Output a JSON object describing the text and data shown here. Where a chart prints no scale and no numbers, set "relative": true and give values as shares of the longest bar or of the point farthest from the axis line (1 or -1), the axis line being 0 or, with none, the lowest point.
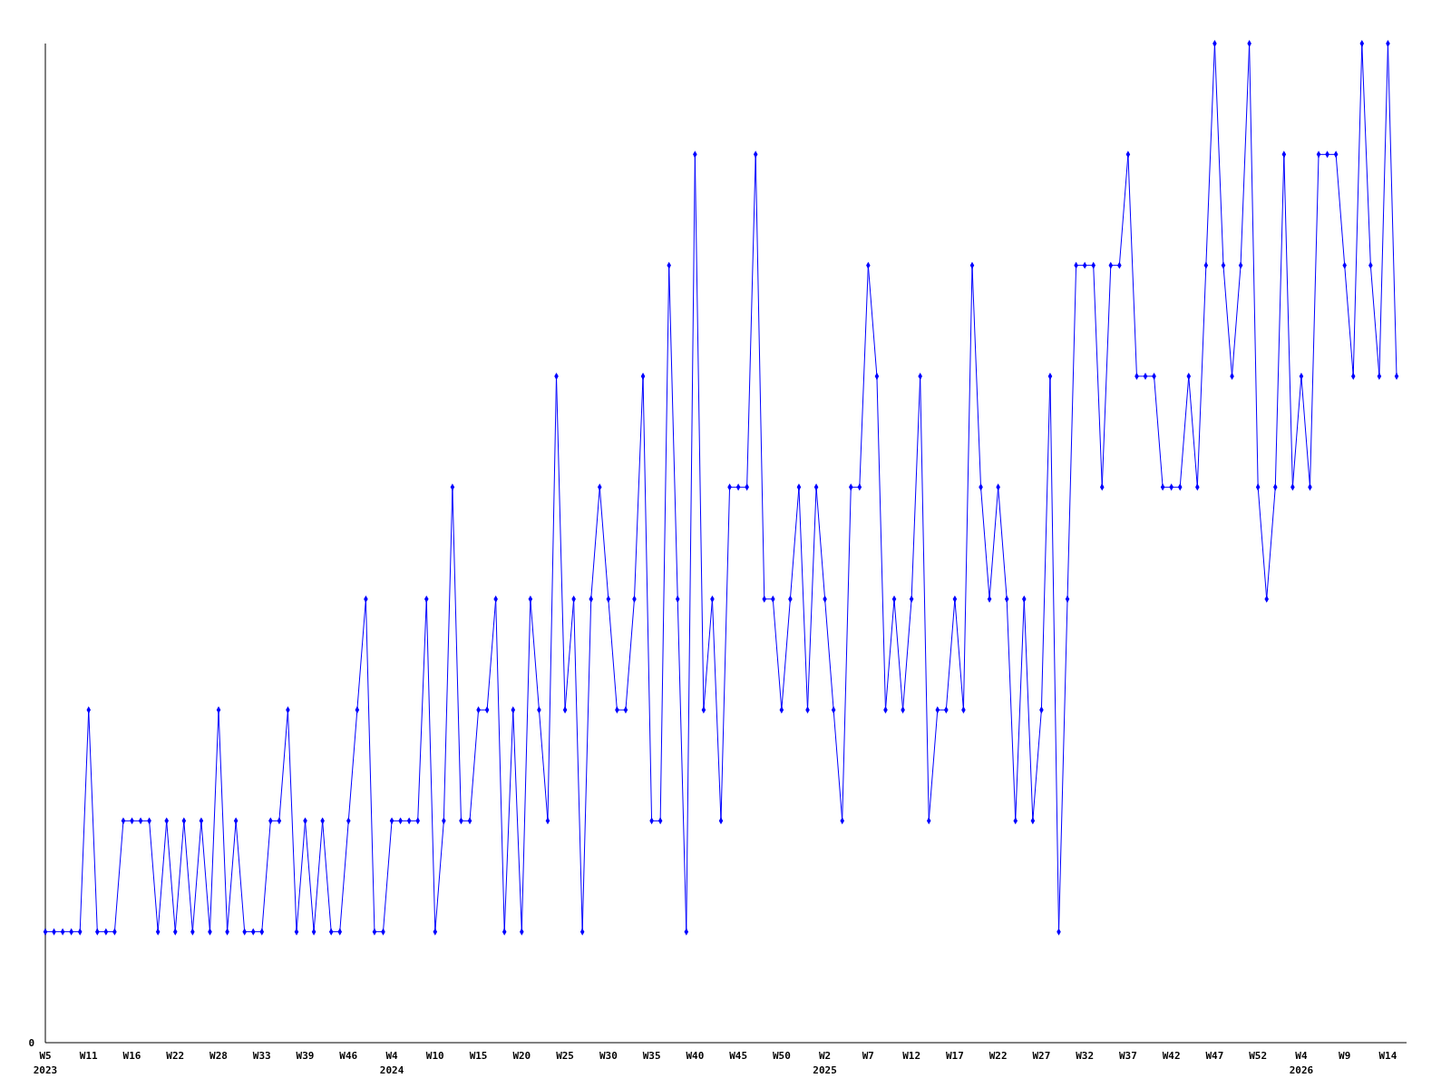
{
  "chart_data": {
    "type": "line",
    "relative": true,
    "marker": "diamond",
    "categories": [
      "W5\n2023",
      null,
      null,
      null,
      null,
      "W11",
      null,
      null,
      null,
      null,
      "W16",
      null,
      null,
      null,
      null,
      "W22",
      null,
      null,
      null,
      null,
      "W28",
      null,
      null,
      null,
      null,
      "W33",
      null,
      null,
      null,
      null,
      "W39",
      null,
      null,
      null,
      null,
      "W46",
      null,
      null,
      null,
      null,
      "W4\n2024",
      null,
      null,
      null,
      null,
      "W10",
      null,
      null,
      null,
      null,
      "W15",
      null,
      null,
      null,
      null,
      "W20",
      null,
      null,
      null,
      null,
      "W25",
      null,
      null,
      null,
      null,
      "W30",
      null,
      null,
      null,
      null,
      "W35",
      null,
      null,
      null,
      null,
      "W40",
      null,
      null,
      null,
      null,
      "W45",
      null,
      null,
      null,
      null,
      "W50",
      null,
      null,
      null,
      null,
      "W2\n2025",
      null,
      null,
      null,
      null,
      "W7",
      null,
      null,
      null,
      null,
      "W12",
      null,
      null,
      null,
      null,
      "W17",
      null,
      null,
      null,
      null,
      "W22",
      null,
      null,
      null,
      null,
      "W27",
      null,
      null,
      null,
      null,
      "W32",
      null,
      null,
      null,
      null,
      "W37",
      null,
      null,
      null,
      null,
      "W42",
      null,
      null,
      null,
      null,
      "W47",
      null,
      null,
      null,
      null,
      "W52",
      null,
      null,
      null,
      null,
      "W4\n2026",
      null,
      null,
      null,
      null,
      "W9",
      null,
      null,
      null,
      null,
      "W14",
      null
    ],
    "series": [
      {
        "color": "#0000ff",
        "values": [
          0.111,
          0.111,
          0.111,
          0.111,
          0.111,
          0.333,
          0.111,
          0.111,
          0.111,
          0.222,
          0.222,
          0.222,
          0.222,
          0.111,
          0.222,
          0.111,
          0.222,
          0.111,
          0.222,
          0.111,
          0.333,
          0.111,
          0.222,
          0.111,
          0.111,
          0.111,
          0.222,
          0.222,
          0.333,
          0.111,
          0.222,
          0.111,
          0.222,
          0.111,
          0.111,
          0.222,
          0.333,
          0.444,
          0.111,
          0.111,
          0.222,
          0.222,
          0.222,
          0.222,
          0.444,
          0.111,
          0.222,
          0.556,
          0.222,
          0.222,
          0.333,
          0.333,
          0.444,
          0.111,
          0.333,
          0.111,
          0.444,
          0.333,
          0.222,
          0.667,
          0.333,
          0.444,
          0.111,
          0.444,
          0.556,
          0.444,
          0.333,
          0.333,
          0.444,
          0.667,
          0.222,
          0.222,
          0.778,
          0.444,
          0.111,
          0.889,
          0.333,
          0.444,
          0.222,
          0.556,
          0.556,
          0.556,
          0.889,
          0.444,
          0.444,
          0.333,
          0.444,
          0.556,
          0.333,
          0.556,
          0.444,
          0.333,
          0.222,
          0.556,
          0.556,
          0.778,
          0.667,
          0.333,
          0.444,
          0.333,
          0.444,
          0.667,
          0.222,
          0.333,
          0.333,
          0.444,
          0.333,
          0.778,
          0.556,
          0.444,
          0.556,
          0.444,
          0.222,
          0.444,
          0.222,
          0.333,
          0.667,
          0.111,
          0.444,
          0.778,
          0.778,
          0.778,
          0.556,
          0.778,
          0.778,
          0.889,
          0.667,
          0.667,
          0.667,
          0.556,
          0.556,
          0.556,
          0.667,
          0.556,
          0.778,
          1,
          0.778,
          0.667,
          0.778,
          1,
          0.556,
          0.444,
          0.556,
          0.889,
          0.556,
          0.667,
          0.556,
          0.889,
          0.889,
          0.889,
          0.778,
          0.667,
          1,
          0.778,
          0.667,
          1,
          0.667
        ]
      }
    ],
    "annotations": [
      "0"
    ]
  }
}
